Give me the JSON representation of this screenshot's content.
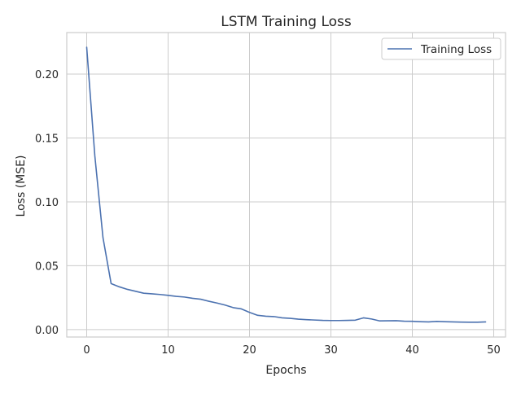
{
  "chart_data": {
    "type": "line",
    "title": "LSTM Training Loss",
    "xlabel": "Epochs",
    "ylabel": "Loss (MSE)",
    "xlim": [
      -2.45,
      51.45
    ],
    "ylim": [
      -0.0058,
      0.2325
    ],
    "xticks": [
      0,
      10,
      20,
      30,
      40,
      50
    ],
    "xtick_labels": [
      "0",
      "10",
      "20",
      "30",
      "40",
      "50"
    ],
    "yticks": [
      0.0,
      0.05,
      0.1,
      0.15,
      0.2
    ],
    "ytick_labels": [
      "0.00",
      "0.05",
      "0.10",
      "0.15",
      "0.20"
    ],
    "grid": true,
    "legend_position": "top-right",
    "colors": {
      "series": "#4c72b0",
      "grid": "#cccccc",
      "spine": "#cccccc",
      "text": "#262626"
    },
    "series": [
      {
        "name": "Training Loss",
        "x": [
          0,
          1,
          2,
          3,
          4,
          5,
          6,
          7,
          8,
          9,
          10,
          11,
          12,
          13,
          14,
          15,
          16,
          17,
          18,
          19,
          20,
          21,
          22,
          23,
          24,
          25,
          26,
          27,
          28,
          29,
          30,
          31,
          32,
          33,
          34,
          35,
          36,
          37,
          38,
          39,
          40,
          41,
          42,
          43,
          44,
          45,
          46,
          47,
          48,
          49
        ],
        "values": [
          0.221,
          0.136,
          0.072,
          0.036,
          0.0335,
          0.0315,
          0.03,
          0.0285,
          0.028,
          0.0275,
          0.0268,
          0.026,
          0.0255,
          0.0245,
          0.0238,
          0.0222,
          0.0208,
          0.0192,
          0.0172,
          0.0162,
          0.0135,
          0.0112,
          0.0105,
          0.0102,
          0.0092,
          0.0088,
          0.0082,
          0.0078,
          0.0075,
          0.0072,
          0.0071,
          0.0071,
          0.0072,
          0.0074,
          0.0092,
          0.0083,
          0.0068,
          0.0069,
          0.007,
          0.0066,
          0.0065,
          0.0062,
          0.006,
          0.0064,
          0.0062,
          0.006,
          0.0059,
          0.0058,
          0.0058,
          0.006
        ]
      }
    ]
  }
}
